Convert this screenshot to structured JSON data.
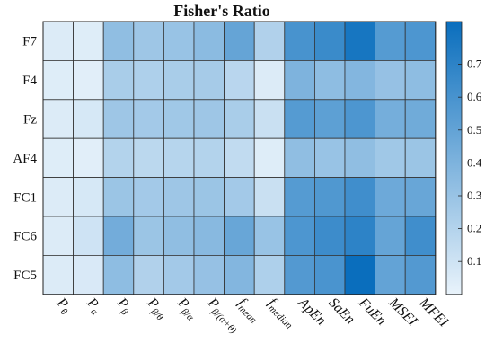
{
  "chart_data": {
    "type": "heatmap",
    "title": "Fisher's Ratio",
    "rows": [
      "F7",
      "F4",
      "Fz",
      "AF4",
      "FC1",
      "FC6",
      "FC5"
    ],
    "columns": [
      {
        "id": "p_theta",
        "base": "P",
        "sub": "θ"
      },
      {
        "id": "p_alpha",
        "base": "P",
        "sub": "α"
      },
      {
        "id": "p_beta",
        "base": "P",
        "sub": "β"
      },
      {
        "id": "p_beta_theta",
        "base": "P",
        "sub": "β/θ"
      },
      {
        "id": "p_beta_alpha",
        "base": "P",
        "sub": "β/α"
      },
      {
        "id": "p_beta_alpha_theta",
        "base": "P",
        "sub": "β/(α+θ)"
      },
      {
        "id": "f_mean",
        "base": "f",
        "sub": "mean"
      },
      {
        "id": "f_median",
        "base": "f",
        "sub": "median"
      },
      {
        "id": "apen",
        "base": "ApEn",
        "sub": ""
      },
      {
        "id": "saen",
        "base": "SaEn",
        "sub": ""
      },
      {
        "id": "fuen",
        "base": "FuEn",
        "sub": ""
      },
      {
        "id": "msei",
        "base": "MSEI",
        "sub": ""
      },
      {
        "id": "mfei",
        "base": "MFEI",
        "sub": ""
      }
    ],
    "values": [
      [
        0.05,
        0.04,
        0.33,
        0.28,
        0.3,
        0.35,
        0.49,
        0.21,
        0.6,
        0.65,
        0.78,
        0.55,
        0.58
      ],
      [
        0.04,
        0.03,
        0.24,
        0.22,
        0.24,
        0.25,
        0.18,
        0.05,
        0.4,
        0.34,
        0.38,
        0.31,
        0.34
      ],
      [
        0.05,
        0.07,
        0.28,
        0.26,
        0.27,
        0.28,
        0.24,
        0.12,
        0.55,
        0.52,
        0.58,
        0.43,
        0.45
      ],
      [
        0.04,
        0.03,
        0.2,
        0.17,
        0.19,
        0.2,
        0.15,
        0.04,
        0.33,
        0.3,
        0.33,
        0.27,
        0.29
      ],
      [
        0.05,
        0.07,
        0.29,
        0.26,
        0.28,
        0.29,
        0.26,
        0.12,
        0.55,
        0.57,
        0.63,
        0.46,
        0.48
      ],
      [
        0.05,
        0.1,
        0.44,
        0.29,
        0.33,
        0.36,
        0.48,
        0.3,
        0.58,
        0.64,
        0.7,
        0.49,
        0.63
      ],
      [
        0.05,
        0.06,
        0.34,
        0.21,
        0.26,
        0.31,
        0.38,
        0.22,
        0.56,
        0.59,
        0.83,
        0.5,
        0.56
      ]
    ],
    "colorbar": {
      "min": 0.0,
      "max": 0.83,
      "ticks": [
        0.1,
        0.2,
        0.3,
        0.4,
        0.5,
        0.6,
        0.7
      ],
      "tick_labels": [
        "0.1",
        "0.2",
        "0.3",
        "0.4",
        "0.5",
        "0.6",
        "0.7"
      ],
      "low_color": "#e9f3fb",
      "high_color": "#0a6ebd"
    }
  }
}
